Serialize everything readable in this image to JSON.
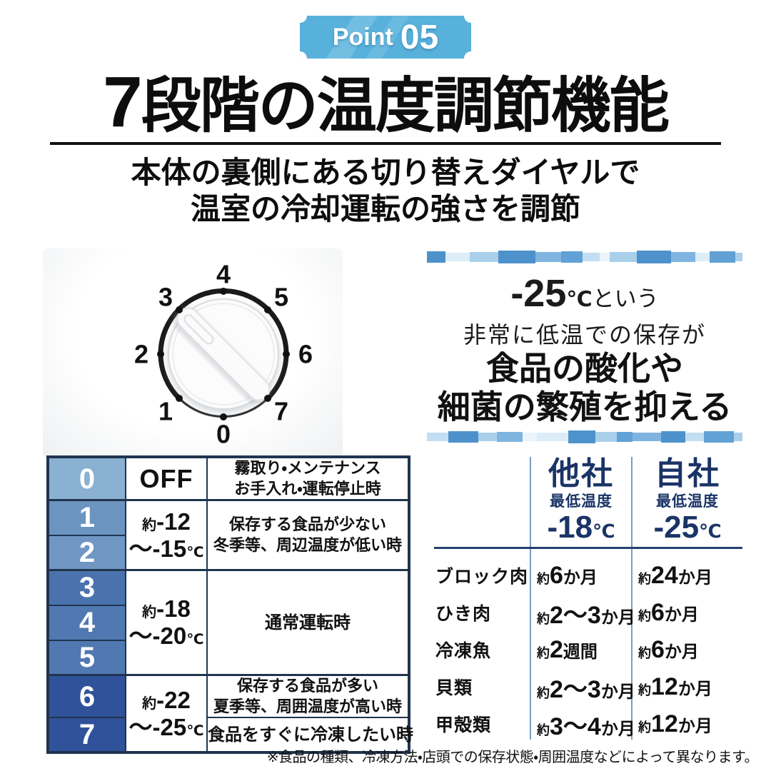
{
  "badge": {
    "label": "Point",
    "number": "05"
  },
  "title": {
    "num": "7",
    "rest": "段階の温度調節機能"
  },
  "subtitle": {
    "line1": "本体の裏側にある切り替えダイヤルで",
    "line2": "温室の冷却運転の強さを調節"
  },
  "dial": {
    "numbers": [
      "0",
      "1",
      "2",
      "3",
      "4",
      "5",
      "6",
      "7"
    ]
  },
  "benefit": {
    "temp": "-25",
    "deg": "℃",
    "suffix": "という",
    "line2": "非常に低温での保存が",
    "line3": "食品の酸化や",
    "line4": "細菌の繁殖を抑える"
  },
  "left_table": {
    "levels": [
      "0",
      "1",
      "2",
      "3",
      "4",
      "5",
      "6",
      "7"
    ],
    "off": "OFF",
    "groups": [
      {
        "prefix": "約",
        "big1": "-12",
        "big2": "〜-15",
        "unit": "℃"
      },
      {
        "prefix": "約",
        "big1": "-18",
        "big2": "〜-20",
        "unit": "℃"
      },
      {
        "prefix": "約",
        "big1": "-22",
        "big2": "〜-25",
        "unit": "℃"
      }
    ],
    "descs": [
      {
        "l1": "霧取り・メンテナンス",
        "l2": "お手入れ・運転停止時"
      },
      {
        "l1": "保存する食品が少ない",
        "l2": "冬季等、周辺温度が低い時"
      },
      {
        "l1": "通常運転時"
      },
      {
        "l1": "保存する食品が多い",
        "l2": "夏季等、周囲温度が高い時"
      },
      {
        "l1": "食品をすぐに冷凍したい時"
      }
    ]
  },
  "right_table": {
    "other": {
      "name": "他社",
      "sub": "最低温度",
      "temp": "-18",
      "unit": "℃"
    },
    "own": {
      "name": "自社",
      "sub": "最低温度",
      "temp": "-25",
      "unit": "℃"
    },
    "rows": [
      {
        "label": "ブロック肉",
        "other": {
          "prefix": "約",
          "value": "6",
          "unit": "か月"
        },
        "own": {
          "prefix": "約",
          "value": "24",
          "unit": "か月"
        }
      },
      {
        "label": "ひき肉",
        "other": {
          "prefix": "約",
          "value": "2〜3",
          "unit": "か月"
        },
        "own": {
          "prefix": "約",
          "value": "6",
          "unit": "か月"
        }
      },
      {
        "label": "冷凍魚",
        "other": {
          "prefix": "約",
          "value": "2",
          "unit": "週間"
        },
        "own": {
          "prefix": "約",
          "value": "6",
          "unit": "か月"
        }
      },
      {
        "label": "貝類",
        "other": {
          "prefix": "約",
          "value": "2〜3",
          "unit": "か月"
        },
        "own": {
          "prefix": "約",
          "value": "12",
          "unit": "か月"
        }
      },
      {
        "label": "甲殻類",
        "other": {
          "prefix": "約",
          "value": "3〜4",
          "unit": "か月"
        },
        "own": {
          "prefix": "約",
          "value": "12",
          "unit": "か月"
        }
      }
    ]
  },
  "footnote": "※食品の種類、冷凍方法・店頭での保存状態・周囲温度などによって異なります。",
  "colors": {
    "badge_blue": "#57b1db",
    "navy_text": "#1a3467",
    "table_border": "#20344f",
    "divider_line": "#7c9cc4",
    "level_colors": [
      "#8ab0d2",
      "#6b94c1",
      "#7097c4",
      "#4a73ae",
      "#5078b1",
      "#5078b1",
      "#30529a",
      "#30529a"
    ],
    "mosaic_palette": [
      "#4e92cb",
      "#7fb4e0",
      "#a9cfeb",
      "#c3def2",
      "#dcedf8",
      "#62a1d5",
      "#ecf5fb"
    ]
  }
}
